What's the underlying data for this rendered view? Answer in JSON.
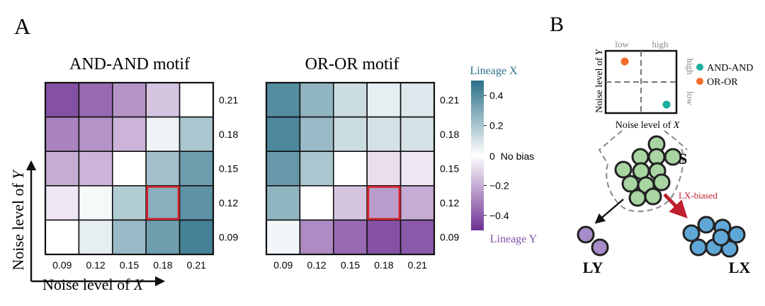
{
  "panels": {
    "a_label": "A",
    "b_label": "B"
  },
  "chart_data": [
    {
      "type": "heatmap",
      "title": "AND-AND motif",
      "xlabel_prefix": "Noise level of ",
      "xlabel_var": "X",
      "ylabel_prefix": "Noise level of ",
      "ylabel_var": "Y",
      "x_ticks": [
        "0.09",
        "0.12",
        "0.15",
        "0.18",
        "0.21"
      ],
      "y_ticks": [
        "0.21",
        "0.18",
        "0.15",
        "0.12",
        "0.09"
      ],
      "values": [
        [
          -0.42,
          -0.36,
          -0.26,
          -0.14,
          0.0
        ],
        [
          -0.3,
          -0.26,
          -0.18,
          0.04,
          0.2
        ],
        [
          -0.2,
          -0.18,
          0.0,
          0.22,
          0.34
        ],
        [
          -0.06,
          0.02,
          0.18,
          0.28,
          0.38
        ],
        [
          0.0,
          0.06,
          0.24,
          0.34,
          0.44
        ]
      ],
      "highlight_cell": {
        "row": 3,
        "col": 3
      },
      "colorbar_range": [
        -0.5,
        0.5
      ]
    },
    {
      "type": "heatmap",
      "title": "OR-OR motif",
      "x_ticks": [
        "0.09",
        "0.12",
        "0.15",
        "0.18",
        "0.21"
      ],
      "y_ticks": [
        "0.21",
        "0.18",
        "0.15",
        "0.12",
        "0.09"
      ],
      "values": [
        [
          0.4,
          0.26,
          0.12,
          0.06,
          0.08
        ],
        [
          0.42,
          0.24,
          0.12,
          0.1,
          0.1
        ],
        [
          0.36,
          0.2,
          0.0,
          -0.08,
          -0.06
        ],
        [
          0.26,
          0.0,
          -0.14,
          -0.24,
          -0.2
        ],
        [
          0.03,
          -0.28,
          -0.36,
          -0.42,
          -0.4
        ]
      ],
      "highlight_cell": {
        "row": 3,
        "col": 3
      },
      "colorbar_range": [
        -0.5,
        0.5
      ]
    }
  ],
  "colorbar": {
    "top_label": "Lineage X",
    "bottom_label": "Lineage Y",
    "zero_label": "0",
    "no_bias_label": "No bias",
    "ticks": [
      {
        "value": 0.4,
        "label": "0.4"
      },
      {
        "value": 0.2,
        "label": "0.2"
      },
      {
        "value": -0.2,
        "label": "−0.2"
      },
      {
        "value": -0.4,
        "label": "−0.4"
      }
    ],
    "range": [
      -0.5,
      0.5
    ],
    "color_positive": "#2a7088",
    "color_zero": "#ffffff",
    "color_negative": "#6e3093"
  },
  "panel_b": {
    "inset": {
      "x_low": "low",
      "x_high": "high",
      "y_high": "high",
      "y_low": "low",
      "ylabel_prefix": "Noise level of ",
      "ylabel_var": "Y",
      "xlabel_prefix": "Noise level of ",
      "xlabel_var": "X"
    },
    "legend": [
      {
        "label": "AND-AND",
        "color": "#1aae9f"
      },
      {
        "label": "OR-OR",
        "color": "#f26c2c"
      }
    ],
    "stem_label": "S",
    "ly_label": "LY",
    "lx_label": "LX",
    "biased_label": "LX-biased",
    "stem_color": "#a8d5a2",
    "ly_color": "#a68cc8",
    "lx_color": "#5fa7d6",
    "arrow_color": "#c0202f"
  }
}
